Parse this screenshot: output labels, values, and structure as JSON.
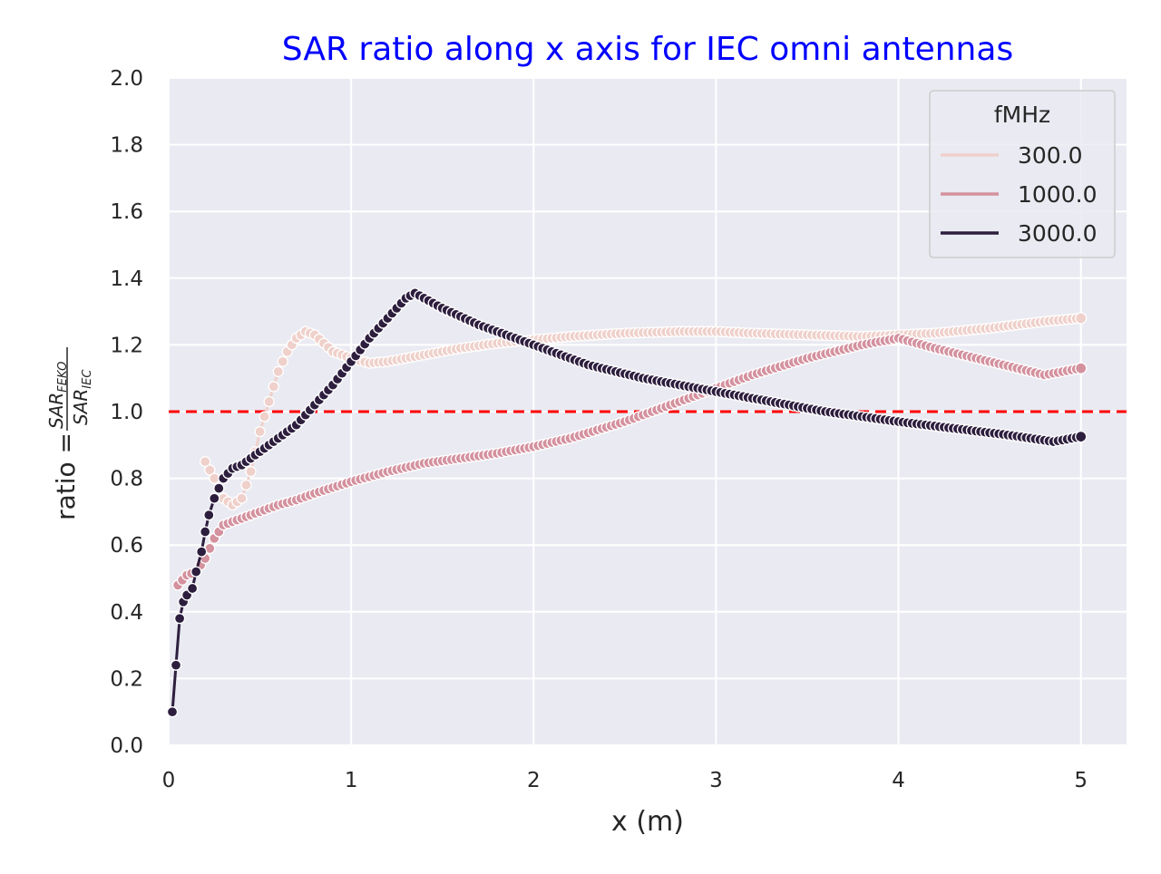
{
  "chart_data": {
    "type": "line",
    "title": "SAR ratio along x axis for IEC omni antennas",
    "title_color": "#0000ff",
    "xlabel": "x (m)",
    "ylabel_prefix": "ratio = ",
    "ylabel_num": "SAR",
    "ylabel_num_sub": "FEKO",
    "ylabel_den": "SAR",
    "ylabel_den_sub": "IEC",
    "xlim": [
      0,
      5.25
    ],
    "ylim": [
      0,
      2.0
    ],
    "x_ticks": [
      0,
      1,
      2,
      3,
      4,
      5
    ],
    "x_tick_labels": [
      "0",
      "1",
      "2",
      "3",
      "4",
      "5"
    ],
    "y_ticks": [
      0.0,
      0.2,
      0.4,
      0.6,
      0.8,
      1.0,
      1.2,
      1.4,
      1.6,
      1.8,
      2.0
    ],
    "y_tick_labels": [
      "0.0",
      "0.2",
      "0.4",
      "0.6",
      "0.8",
      "1.0",
      "1.2",
      "1.4",
      "1.6",
      "1.8",
      "2.0"
    ],
    "grid": true,
    "plot_background": "#eaeaf2",
    "reference_line": {
      "y": 1.0,
      "color": "#ff0000",
      "style": "dashed"
    },
    "legend": {
      "title": "fMHz",
      "placement": "top-right",
      "entries": [
        "300.0",
        "1000.0",
        "3000.0"
      ]
    },
    "series": [
      {
        "name": "300.0",
        "color": "#efd0ca",
        "x": [
          0.2,
          0.25,
          0.3,
          0.35,
          0.4,
          0.45,
          0.5,
          0.55,
          0.6,
          0.65,
          0.7,
          0.75,
          0.8,
          0.9,
          1.0,
          1.1,
          1.2,
          1.4,
          1.6,
          1.8,
          2.0,
          2.2,
          2.5,
          2.8,
          3.0,
          3.2,
          3.5,
          3.8,
          4.0,
          4.2,
          4.5,
          4.8,
          5.0
        ],
        "y": [
          0.85,
          0.8,
          0.74,
          0.72,
          0.74,
          0.82,
          0.94,
          1.03,
          1.12,
          1.18,
          1.22,
          1.24,
          1.23,
          1.18,
          1.16,
          1.145,
          1.15,
          1.17,
          1.19,
          1.205,
          1.215,
          1.225,
          1.235,
          1.24,
          1.24,
          1.235,
          1.23,
          1.225,
          1.23,
          1.235,
          1.25,
          1.27,
          1.28
        ]
      },
      {
        "name": "1000.0",
        "color": "#d4919e",
        "x": [
          0.05,
          0.1,
          0.15,
          0.2,
          0.25,
          0.3,
          0.35,
          0.4,
          0.5,
          0.6,
          0.7,
          0.8,
          1.0,
          1.2,
          1.4,
          1.6,
          1.8,
          2.0,
          2.2,
          2.5,
          2.8,
          3.0,
          3.2,
          3.5,
          3.8,
          4.0,
          4.2,
          4.5,
          4.8,
          5.0
        ],
        "y": [
          0.48,
          0.51,
          0.52,
          0.56,
          0.62,
          0.66,
          0.67,
          0.68,
          0.7,
          0.72,
          0.735,
          0.755,
          0.79,
          0.82,
          0.845,
          0.86,
          0.875,
          0.895,
          0.92,
          0.97,
          1.03,
          1.07,
          1.11,
          1.16,
          1.2,
          1.22,
          1.19,
          1.15,
          1.11,
          1.13
        ]
      },
      {
        "name": "3000.0",
        "color": "#2d1e3e",
        "x": [
          0.02,
          0.04,
          0.06,
          0.08,
          0.1,
          0.13,
          0.15,
          0.18,
          0.2,
          0.22,
          0.25,
          0.3,
          0.35,
          0.4,
          0.5,
          0.6,
          0.7,
          0.8,
          0.9,
          1.0,
          1.1,
          1.2,
          1.3,
          1.35,
          1.5,
          1.7,
          2.0,
          2.3,
          2.6,
          3.0,
          3.3,
          3.6,
          4.0,
          4.3,
          4.6,
          4.85,
          5.0
        ],
        "y": [
          0.1,
          0.24,
          0.38,
          0.43,
          0.45,
          0.47,
          0.52,
          0.58,
          0.64,
          0.69,
          0.74,
          0.8,
          0.83,
          0.84,
          0.88,
          0.92,
          0.96,
          1.02,
          1.08,
          1.15,
          1.22,
          1.28,
          1.34,
          1.355,
          1.31,
          1.26,
          1.2,
          1.14,
          1.1,
          1.06,
          1.03,
          1.0,
          0.97,
          0.95,
          0.93,
          0.91,
          0.925
        ]
      }
    ]
  }
}
